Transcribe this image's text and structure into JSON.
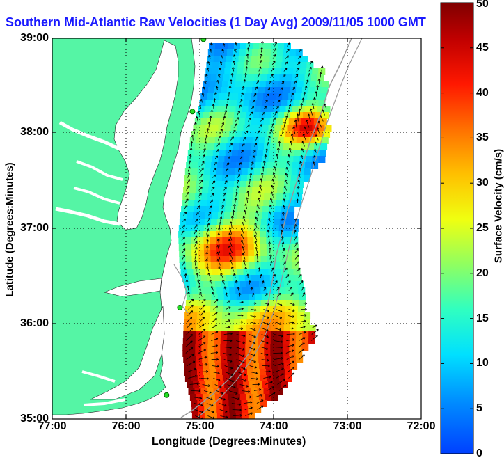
{
  "title": "Southern Mid-Atlantic Raw Velocities (1 Day Avg) 2009/11/05 1000 GMT",
  "xlabel": "Longitude (Degrees:Minutes)",
  "ylabel": "Latitude (Degrees:Minutes)",
  "colorbar": {
    "label": "Surface Velocity (cm/s)",
    "min": 0,
    "max": 50,
    "ticks": [
      "0",
      "5",
      "10",
      "15",
      "20",
      "25",
      "30",
      "35",
      "40",
      "45",
      "50"
    ],
    "colormap": "jet"
  },
  "axes": {
    "xlim": [
      -77,
      -72
    ],
    "ylim": [
      35,
      39
    ],
    "xticks": [
      "77:00",
      "76:00",
      "75:00",
      "74:00",
      "73:00",
      "72:00"
    ],
    "yticks": [
      "39:00",
      "38:00",
      "37:00",
      "36:00",
      "35:00"
    ],
    "grid": "dotted"
  },
  "colors": {
    "land": "#55f5a5",
    "title": "#1a1aff",
    "station": "#22dd22",
    "isobath": "#999999"
  },
  "stations": [
    {
      "lon": -74.95,
      "lat": 38.99
    },
    {
      "lon": -75.1,
      "lat": 38.23
    },
    {
      "lon": -75.27,
      "lat": 36.17
    },
    {
      "lon": -75.45,
      "lat": 35.25
    }
  ]
}
